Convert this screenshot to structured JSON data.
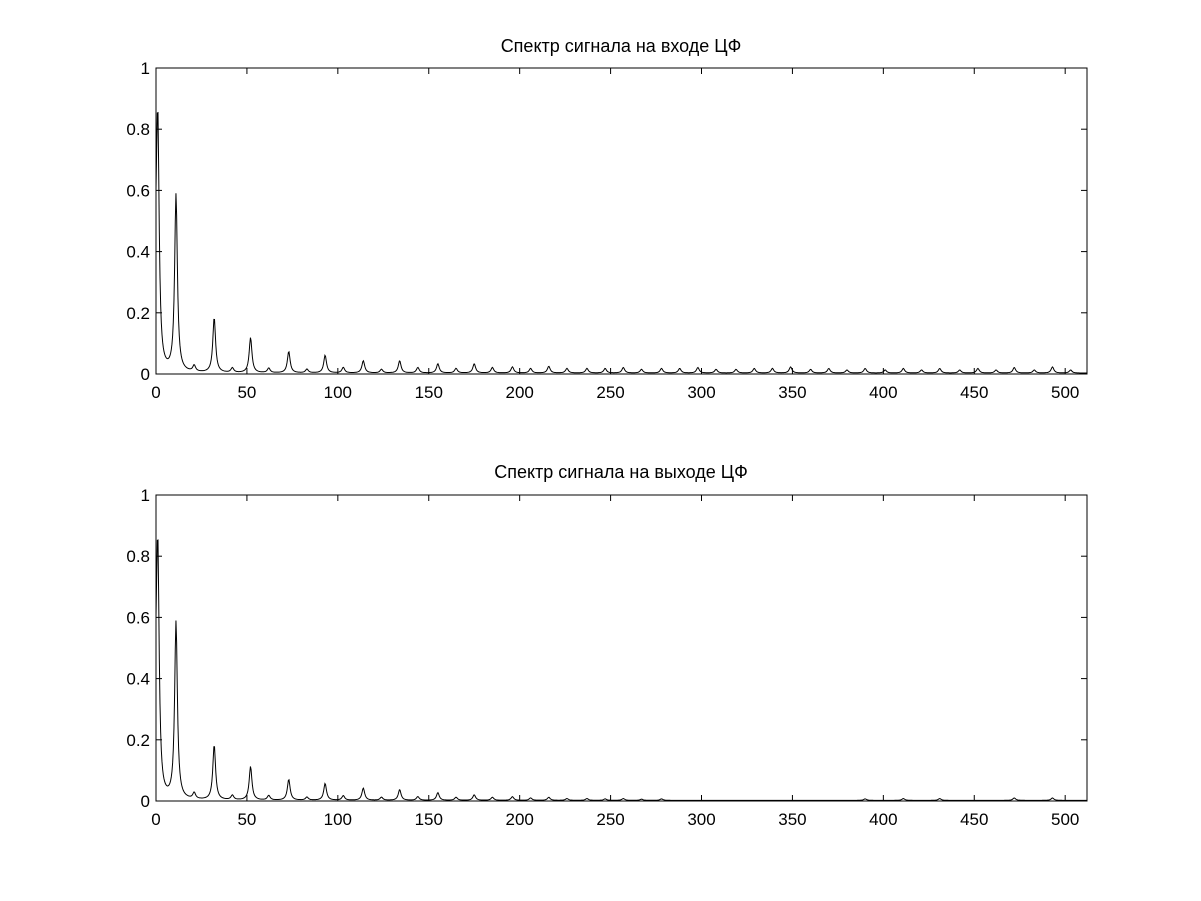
{
  "chart_data": [
    {
      "type": "line",
      "title": "Спектр сигнала на входе ЦФ",
      "xlabel": "",
      "ylabel": "",
      "xlim": [
        0,
        512
      ],
      "ylim": [
        0,
        1
      ],
      "x_ticks": [
        0,
        50,
        100,
        150,
        200,
        250,
        300,
        350,
        400,
        450,
        500
      ],
      "x_tick_labels": [
        "0",
        "50",
        "100",
        "150",
        "200",
        "250",
        "300",
        "350",
        "400",
        "450",
        "500"
      ],
      "y_ticks": [
        0,
        0.2,
        0.4,
        0.6,
        0.8,
        1
      ],
      "y_tick_labels": [
        "0",
        "0.2",
        "0.4",
        "0.6",
        "0.8",
        "1"
      ],
      "grid": false,
      "line_color": "#000000",
      "baseline": 0.003,
      "peaks": [
        {
          "x": 0,
          "y": 0.26
        },
        {
          "x": 1,
          "y": 0.75
        },
        {
          "x": 11,
          "y": 0.58
        },
        {
          "x": 21,
          "y": 0.02
        },
        {
          "x": 32,
          "y": 0.18
        },
        {
          "x": 42,
          "y": 0.015
        },
        {
          "x": 52,
          "y": 0.115
        },
        {
          "x": 62,
          "y": 0.015
        },
        {
          "x": 73,
          "y": 0.07
        },
        {
          "x": 83,
          "y": 0.012
        },
        {
          "x": 93,
          "y": 0.058
        },
        {
          "x": 103,
          "y": 0.018
        },
        {
          "x": 114,
          "y": 0.04
        },
        {
          "x": 124,
          "y": 0.012
        },
        {
          "x": 134,
          "y": 0.04
        },
        {
          "x": 144,
          "y": 0.018
        },
        {
          "x": 155,
          "y": 0.03
        },
        {
          "x": 165,
          "y": 0.015
        },
        {
          "x": 175,
          "y": 0.03
        },
        {
          "x": 185,
          "y": 0.018
        },
        {
          "x": 196,
          "y": 0.02
        },
        {
          "x": 206,
          "y": 0.015
        },
        {
          "x": 216,
          "y": 0.022
        },
        {
          "x": 226,
          "y": 0.015
        },
        {
          "x": 237,
          "y": 0.015
        },
        {
          "x": 247,
          "y": 0.015
        },
        {
          "x": 257,
          "y": 0.018
        },
        {
          "x": 267,
          "y": 0.012
        },
        {
          "x": 278,
          "y": 0.015
        },
        {
          "x": 288,
          "y": 0.015
        },
        {
          "x": 298,
          "y": 0.018
        },
        {
          "x": 308,
          "y": 0.012
        },
        {
          "x": 319,
          "y": 0.012
        },
        {
          "x": 329,
          "y": 0.015
        },
        {
          "x": 339,
          "y": 0.015
        },
        {
          "x": 349,
          "y": 0.02
        },
        {
          "x": 360,
          "y": 0.012
        },
        {
          "x": 370,
          "y": 0.015
        },
        {
          "x": 380,
          "y": 0.01
        },
        {
          "x": 390,
          "y": 0.015
        },
        {
          "x": 401,
          "y": 0.01
        },
        {
          "x": 411,
          "y": 0.015
        },
        {
          "x": 421,
          "y": 0.01
        },
        {
          "x": 431,
          "y": 0.015
        },
        {
          "x": 442,
          "y": 0.01
        },
        {
          "x": 452,
          "y": 0.015
        },
        {
          "x": 462,
          "y": 0.01
        },
        {
          "x": 472,
          "y": 0.018
        },
        {
          "x": 483,
          "y": 0.01
        },
        {
          "x": 493,
          "y": 0.02
        },
        {
          "x": 503,
          "y": 0.01
        }
      ]
    },
    {
      "type": "line",
      "title": "Спектр сигнала на выходе ЦФ",
      "xlabel": "",
      "ylabel": "",
      "xlim": [
        0,
        512
      ],
      "ylim": [
        0,
        1
      ],
      "x_ticks": [
        0,
        50,
        100,
        150,
        200,
        250,
        300,
        350,
        400,
        450,
        500
      ],
      "x_tick_labels": [
        "0",
        "50",
        "100",
        "150",
        "200",
        "250",
        "300",
        "350",
        "400",
        "450",
        "500"
      ],
      "y_ticks": [
        0,
        0.2,
        0.4,
        0.6,
        0.8,
        1
      ],
      "y_tick_labels": [
        "0",
        "0.2",
        "0.4",
        "0.6",
        "0.8",
        "1"
      ],
      "grid": false,
      "line_color": "#000000",
      "baseline": 0.002,
      "peaks": [
        {
          "x": 0,
          "y": 0.26
        },
        {
          "x": 1,
          "y": 0.75
        },
        {
          "x": 11,
          "y": 0.58
        },
        {
          "x": 21,
          "y": 0.02
        },
        {
          "x": 32,
          "y": 0.18
        },
        {
          "x": 42,
          "y": 0.015
        },
        {
          "x": 52,
          "y": 0.11
        },
        {
          "x": 62,
          "y": 0.015
        },
        {
          "x": 73,
          "y": 0.068
        },
        {
          "x": 83,
          "y": 0.01
        },
        {
          "x": 93,
          "y": 0.055
        },
        {
          "x": 103,
          "y": 0.015
        },
        {
          "x": 114,
          "y": 0.04
        },
        {
          "x": 124,
          "y": 0.01
        },
        {
          "x": 134,
          "y": 0.035
        },
        {
          "x": 144,
          "y": 0.012
        },
        {
          "x": 155,
          "y": 0.025
        },
        {
          "x": 165,
          "y": 0.01
        },
        {
          "x": 175,
          "y": 0.018
        },
        {
          "x": 185,
          "y": 0.01
        },
        {
          "x": 196,
          "y": 0.012
        },
        {
          "x": 206,
          "y": 0.008
        },
        {
          "x": 216,
          "y": 0.01
        },
        {
          "x": 226,
          "y": 0.006
        },
        {
          "x": 237,
          "y": 0.006
        },
        {
          "x": 247,
          "y": 0.005
        },
        {
          "x": 257,
          "y": 0.006
        },
        {
          "x": 267,
          "y": 0.004
        },
        {
          "x": 278,
          "y": 0.005
        },
        {
          "x": 390,
          "y": 0.005
        },
        {
          "x": 411,
          "y": 0.006
        },
        {
          "x": 431,
          "y": 0.006
        },
        {
          "x": 472,
          "y": 0.008
        },
        {
          "x": 493,
          "y": 0.008
        }
      ]
    }
  ]
}
